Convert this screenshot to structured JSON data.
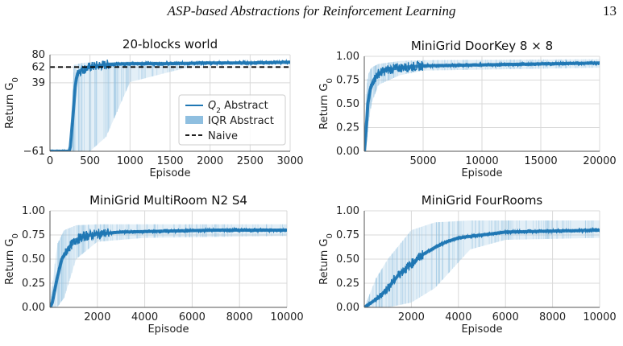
{
  "header": {
    "title": "ASP-based Abstractions for Reinforcement Learning",
    "page_number": "13"
  },
  "colors": {
    "line": "#1f77b4",
    "band": "#8fbfe0",
    "grid": "#d9d9d9",
    "naive": "#000000"
  },
  "chart_data": [
    {
      "id": "blocks",
      "type": "line",
      "title": "20-blocks world",
      "xlabel": "Episode",
      "ylabel": "Return G0",
      "xlim": [
        0,
        3000
      ],
      "ylim": [
        -61,
        80
      ],
      "xticks": [
        "0",
        "500",
        "1000",
        "1500",
        "2000",
        "2500",
        "3000"
      ],
      "xtick_values": [
        0,
        500,
        1000,
        1500,
        2000,
        2500,
        3000
      ],
      "yticks": [
        "−61",
        "39",
        "62",
        "80"
      ],
      "ytick_values": [
        -61,
        39,
        62,
        80
      ],
      "grid": true,
      "legend_position": "lower-right",
      "legend": [
        "Q2 Abstract",
        "IQR Abstract",
        "Naive"
      ],
      "naive_value": 62,
      "series": [
        {
          "name": "Q2 Abstract",
          "x": [
            0,
            250,
            280,
            320,
            350,
            400,
            450,
            500,
            600,
            750,
            1000,
            1500,
            2000,
            2500,
            3000
          ],
          "values": [
            -61,
            -61,
            -20,
            40,
            55,
            58,
            60,
            62,
            64,
            66,
            67,
            67,
            68,
            68,
            69
          ]
        },
        {
          "name": "IQR Abstract",
          "x": [
            0,
            250,
            300,
            400,
            500,
            700,
            1000,
            1500,
            1750,
            2000,
            3000
          ],
          "lower": [
            -61,
            -61,
            -61,
            -61,
            -61,
            -40,
            40,
            55,
            62,
            66,
            67
          ],
          "upper": [
            -61,
            -61,
            65,
            68,
            69,
            69,
            70,
            70,
            70,
            70,
            70
          ]
        }
      ]
    },
    {
      "id": "doorkey",
      "type": "line",
      "title": "MiniGrid DoorKey 8 × 8",
      "xlabel": "Episode",
      "ylabel": "Return G0",
      "xlim": [
        0,
        20000
      ],
      "ylim": [
        0,
        1
      ],
      "xticks": [
        "5000",
        "10000",
        "15000",
        "20000"
      ],
      "xtick_values": [
        5000,
        10000,
        15000,
        20000
      ],
      "yticks": [
        "0.00",
        "0.25",
        "0.50",
        "0.75",
        "1.00"
      ],
      "ytick_values": [
        0,
        0.25,
        0.5,
        0.75,
        1
      ],
      "grid": true,
      "series": [
        {
          "name": "Q2 Abstract",
          "x": [
            0,
            150,
            300,
            500,
            800,
            1200,
            2000,
            3000,
            5000,
            10000,
            15000,
            20000
          ],
          "values": [
            0,
            0.2,
            0.5,
            0.65,
            0.75,
            0.82,
            0.86,
            0.88,
            0.9,
            0.91,
            0.92,
            0.93
          ]
        },
        {
          "name": "IQR Abstract",
          "x": [
            0,
            150,
            300,
            600,
            1200,
            3000,
            5000,
            20000
          ],
          "lower": [
            0,
            0,
            0.25,
            0.5,
            0.7,
            0.8,
            0.85,
            0.88
          ],
          "upper": [
            0,
            0.6,
            0.8,
            0.88,
            0.92,
            0.95,
            0.96,
            0.97
          ]
        }
      ]
    },
    {
      "id": "multiroom",
      "type": "line",
      "title": "MiniGrid MultiRoom N2 S4",
      "xlabel": "Episode",
      "ylabel": "Return G0",
      "xlim": [
        0,
        10000
      ],
      "ylim": [
        0,
        1
      ],
      "xticks": [
        "2000",
        "4000",
        "6000",
        "8000",
        "10000"
      ],
      "xtick_values": [
        2000,
        4000,
        6000,
        8000,
        10000
      ],
      "yticks": [
        "0.00",
        "0.25",
        "0.50",
        "0.75",
        "1.00"
      ],
      "ytick_values": [
        0,
        0.25,
        0.5,
        0.75,
        1
      ],
      "grid": true,
      "series": [
        {
          "name": "Q2 Abstract",
          "x": [
            0,
            100,
            300,
            500,
            800,
            1100,
            1500,
            2000,
            3000,
            5000,
            7000,
            10000
          ],
          "values": [
            0,
            0.05,
            0.3,
            0.5,
            0.62,
            0.7,
            0.74,
            0.76,
            0.78,
            0.79,
            0.8,
            0.8
          ]
        },
        {
          "name": "IQR Abstract",
          "x": [
            0,
            300,
            600,
            1100,
            2000,
            4000,
            10000
          ],
          "lower": [
            0,
            0,
            0.1,
            0.5,
            0.68,
            0.72,
            0.74
          ],
          "upper": [
            0,
            0.65,
            0.8,
            0.85,
            0.86,
            0.86,
            0.86
          ]
        }
      ]
    },
    {
      "id": "fourrooms",
      "type": "line",
      "title": "MiniGrid FourRooms",
      "xlabel": "Episode",
      "ylabel": "Return G0",
      "xlim": [
        0,
        10000
      ],
      "ylim": [
        0,
        1
      ],
      "xticks": [
        "2000",
        "4000",
        "6000",
        "8000",
        "10000"
      ],
      "xtick_values": [
        2000,
        4000,
        6000,
        8000,
        10000
      ],
      "yticks": [
        "0.00",
        "0.25",
        "0.50",
        "0.75",
        "1.00"
      ],
      "ytick_values": [
        0,
        0.25,
        0.5,
        0.75,
        1
      ],
      "grid": true,
      "series": [
        {
          "name": "Q2 Abstract",
          "x": [
            0,
            300,
            600,
            1000,
            1500,
            2000,
            2500,
            3000,
            3500,
            4000,
            5000,
            6000,
            8000,
            10000
          ],
          "values": [
            0,
            0.05,
            0.1,
            0.2,
            0.35,
            0.45,
            0.55,
            0.62,
            0.68,
            0.72,
            0.75,
            0.78,
            0.79,
            0.8
          ]
        },
        {
          "name": "IQR Abstract",
          "x": [
            0,
            500,
            1000,
            2000,
            3000,
            4500,
            6000,
            10000
          ],
          "lower": [
            0,
            0,
            0,
            0.05,
            0.2,
            0.6,
            0.7,
            0.72
          ],
          "upper": [
            0,
            0.3,
            0.5,
            0.8,
            0.88,
            0.9,
            0.9,
            0.9
          ]
        }
      ]
    }
  ]
}
